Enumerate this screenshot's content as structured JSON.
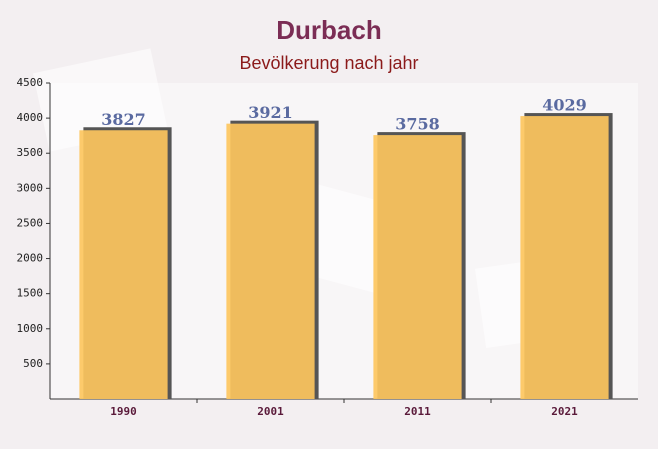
{
  "chart_data": {
    "type": "bar",
    "title": "Durbach",
    "subtitle": "Bevölkerung nach jahr",
    "categories": [
      "1990",
      "2001",
      "2011",
      "2021"
    ],
    "values": [
      3827,
      3921,
      3758,
      4029
    ],
    "color": "#fdc55e",
    "ylim": [
      0,
      4500
    ],
    "yticks": [
      500,
      1000,
      1500,
      2000,
      2500,
      3000,
      3500,
      4000,
      4500
    ],
    "grid": false
  }
}
